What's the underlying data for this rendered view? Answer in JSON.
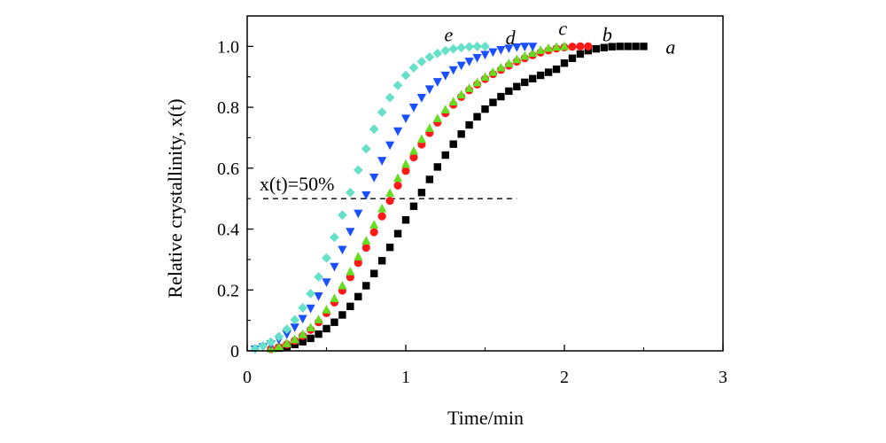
{
  "chart_data": {
    "type": "scatter",
    "title": "",
    "xlabel": "Time/min",
    "ylabel": "Relative crystallinity, x(t)",
    "xlim": [
      0,
      3
    ],
    "ylim": [
      0,
      1.1
    ],
    "x_ticks": [
      0,
      1,
      2,
      3
    ],
    "x_tick_labels": [
      "0",
      "1",
      "2",
      "3"
    ],
    "y_ticks": [
      0,
      0.2,
      0.4,
      0.6,
      0.8,
      1.0
    ],
    "y_tick_labels": [
      "0",
      "0.2",
      "0.4",
      "0.6",
      "0.8",
      "1.0"
    ],
    "grid": false,
    "legend": "none",
    "annotation": {
      "text": "x(t)=50%",
      "y": 0.5,
      "x_range": [
        0.1,
        1.7
      ],
      "line_style": "dashed"
    },
    "series": [
      {
        "label": "a",
        "marker": "square",
        "color": "#000000",
        "x": [
          0.2,
          0.25,
          0.3,
          0.35,
          0.4,
          0.45,
          0.5,
          0.55,
          0.6,
          0.65,
          0.7,
          0.75,
          0.8,
          0.85,
          0.9,
          0.95,
          1.0,
          1.05,
          1.1,
          1.15,
          1.2,
          1.25,
          1.3,
          1.35,
          1.4,
          1.45,
          1.5,
          1.55,
          1.6,
          1.65,
          1.7,
          1.75,
          1.8,
          1.85,
          1.9,
          1.95,
          2.0,
          2.05,
          2.1,
          2.15,
          2.2,
          2.25,
          2.3,
          2.35,
          2.4,
          2.45,
          2.5
        ],
        "y": [
          0.009,
          0.014,
          0.021,
          0.03,
          0.041,
          0.055,
          0.073,
          0.094,
          0.118,
          0.146,
          0.178,
          0.214,
          0.254,
          0.296,
          0.34,
          0.385,
          0.43,
          0.475,
          0.52,
          0.563,
          0.604,
          0.643,
          0.679,
          0.712,
          0.742,
          0.769,
          0.794,
          0.816,
          0.835,
          0.853,
          0.868,
          0.882,
          0.894,
          0.905,
          0.915,
          0.925,
          0.945,
          0.961,
          0.975,
          0.986,
          0.992,
          0.996,
          0.999,
          1.0,
          1.0,
          1.0,
          1.0
        ]
      },
      {
        "label": "b",
        "marker": "circle",
        "color": "#ff1a1a",
        "x": [
          0.15,
          0.2,
          0.25,
          0.3,
          0.35,
          0.4,
          0.45,
          0.5,
          0.55,
          0.6,
          0.65,
          0.7,
          0.75,
          0.8,
          0.85,
          0.9,
          0.95,
          1.0,
          1.05,
          1.1,
          1.15,
          1.2,
          1.25,
          1.3,
          1.35,
          1.4,
          1.45,
          1.5,
          1.55,
          1.6,
          1.65,
          1.7,
          1.75,
          1.8,
          1.85,
          1.9,
          1.95,
          2.0,
          2.05,
          2.1,
          2.15
        ],
        "y": [
          0.006,
          0.012,
          0.021,
          0.033,
          0.049,
          0.069,
          0.094,
          0.124,
          0.159,
          0.198,
          0.242,
          0.289,
          0.339,
          0.39,
          0.442,
          0.493,
          0.543,
          0.591,
          0.636,
          0.678,
          0.716,
          0.75,
          0.781,
          0.809,
          0.834,
          0.856,
          0.875,
          0.893,
          0.909,
          0.923,
          0.937,
          0.95,
          0.961,
          0.971,
          0.98,
          0.987,
          0.993,
          0.997,
          0.999,
          1.0,
          1.0
        ]
      },
      {
        "label": "c",
        "marker": "triangle-up",
        "color": "#66dd22",
        "x": [
          0.15,
          0.2,
          0.25,
          0.3,
          0.35,
          0.4,
          0.45,
          0.5,
          0.55,
          0.6,
          0.65,
          0.7,
          0.75,
          0.8,
          0.85,
          0.9,
          0.95,
          1.0,
          1.05,
          1.1,
          1.15,
          1.2,
          1.25,
          1.3,
          1.35,
          1.4,
          1.45,
          1.5,
          1.55,
          1.6,
          1.65,
          1.7,
          1.75,
          1.8,
          1.85,
          1.9,
          1.95,
          2.0
        ],
        "y": [
          0.007,
          0.014,
          0.024,
          0.037,
          0.054,
          0.076,
          0.103,
          0.135,
          0.172,
          0.214,
          0.26,
          0.309,
          0.361,
          0.414,
          0.467,
          0.518,
          0.567,
          0.613,
          0.656,
          0.695,
          0.731,
          0.763,
          0.792,
          0.818,
          0.841,
          0.862,
          0.881,
          0.899,
          0.915,
          0.93,
          0.944,
          0.957,
          0.968,
          0.978,
          0.987,
          0.994,
          0.998,
          1.0
        ]
      },
      {
        "label": "d",
        "marker": "triangle-down",
        "color": "#1a4fff",
        "x": [
          0.05,
          0.1,
          0.15,
          0.2,
          0.25,
          0.3,
          0.35,
          0.4,
          0.45,
          0.5,
          0.55,
          0.6,
          0.65,
          0.7,
          0.75,
          0.8,
          0.85,
          0.9,
          0.95,
          1.0,
          1.05,
          1.1,
          1.15,
          1.2,
          1.25,
          1.3,
          1.35,
          1.4,
          1.45,
          1.5,
          1.55,
          1.6,
          1.65,
          1.7,
          1.75,
          1.8
        ],
        "y": [
          0.006,
          0.013,
          0.023,
          0.037,
          0.055,
          0.078,
          0.106,
          0.14,
          0.18,
          0.226,
          0.277,
          0.333,
          0.392,
          0.452,
          0.512,
          0.57,
          0.625,
          0.676,
          0.722,
          0.764,
          0.8,
          0.832,
          0.86,
          0.884,
          0.905,
          0.923,
          0.938,
          0.951,
          0.963,
          0.973,
          0.982,
          0.989,
          0.994,
          0.998,
          1.0,
          1.0
        ]
      },
      {
        "label": "e",
        "marker": "diamond",
        "color": "#66e0c8",
        "x": [
          0.05,
          0.1,
          0.15,
          0.2,
          0.25,
          0.3,
          0.35,
          0.4,
          0.45,
          0.5,
          0.55,
          0.6,
          0.65,
          0.7,
          0.75,
          0.8,
          0.85,
          0.9,
          0.95,
          1.0,
          1.05,
          1.1,
          1.15,
          1.2,
          1.25,
          1.3,
          1.35,
          1.4,
          1.45,
          1.5
        ],
        "y": [
          0.007,
          0.016,
          0.029,
          0.047,
          0.071,
          0.102,
          0.141,
          0.188,
          0.243,
          0.305,
          0.373,
          0.446,
          0.52,
          0.594,
          0.664,
          0.728,
          0.784,
          0.832,
          0.872,
          0.905,
          0.93,
          0.95,
          0.965,
          0.977,
          0.986,
          0.992,
          0.996,
          0.999,
          1.0,
          1.0
        ]
      }
    ],
    "series_labels": [
      {
        "text": "a",
        "x": 2.67,
        "y": 1.0
      },
      {
        "text": "b",
        "x": 2.27,
        "y": 1.04
      },
      {
        "text": "c",
        "x": 1.99,
        "y": 1.06
      },
      {
        "text": "d",
        "x": 1.66,
        "y": 1.03
      },
      {
        "text": "e",
        "x": 1.27,
        "y": 1.04
      }
    ]
  }
}
